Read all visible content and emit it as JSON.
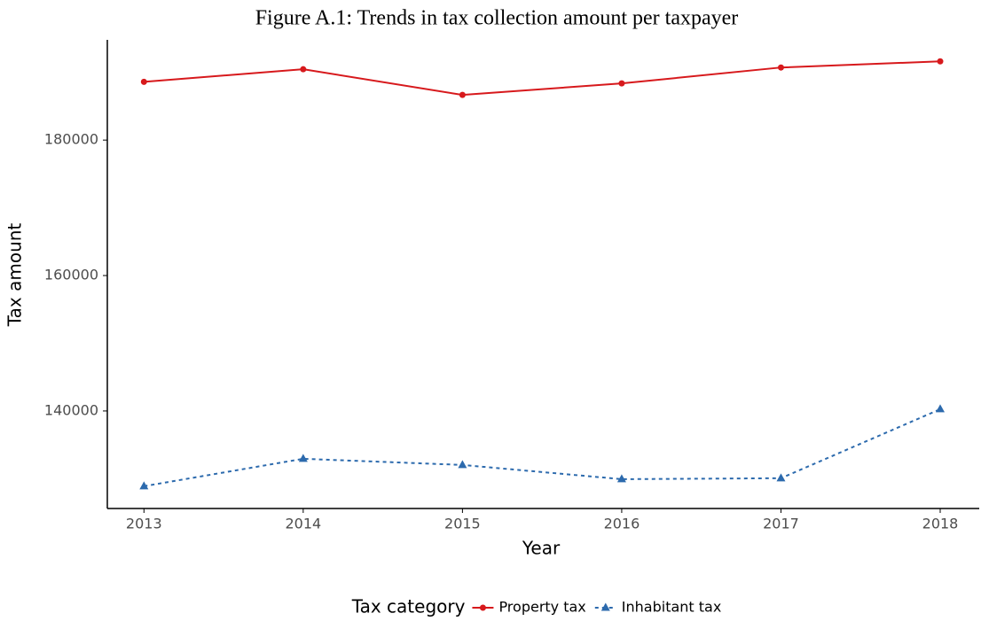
{
  "chart_data": {
    "type": "line",
    "title": "Figure A.1: Trends in tax collection amount per taxpayer",
    "x_label": "Year",
    "y_label": "Tax amount",
    "x": [
      2013,
      2014,
      2015,
      2016,
      2017,
      2018
    ],
    "xlim": [
      2012.77,
      2018.245
    ],
    "xticks": [
      2013,
      2014,
      2015,
      2016,
      2017,
      2018
    ],
    "ylim": [
      125600,
      194800
    ],
    "yticks": [
      140000,
      160000,
      180000
    ],
    "grid": false,
    "legend_title": "Tax category",
    "legend_position": "bottom",
    "series": [
      {
        "name": "Property tax",
        "color": "#d7191c",
        "linestyle": "solid",
        "marker": "circle",
        "values": [
          188600,
          190460,
          186670,
          188370,
          190720,
          191630
        ]
      },
      {
        "name": "Inhabitant tax",
        "color": "#2c6aad",
        "linestyle": "dashed",
        "marker": "triangle",
        "values": [
          128890,
          132940,
          132030,
          129930,
          130070,
          140260
        ]
      }
    ]
  }
}
